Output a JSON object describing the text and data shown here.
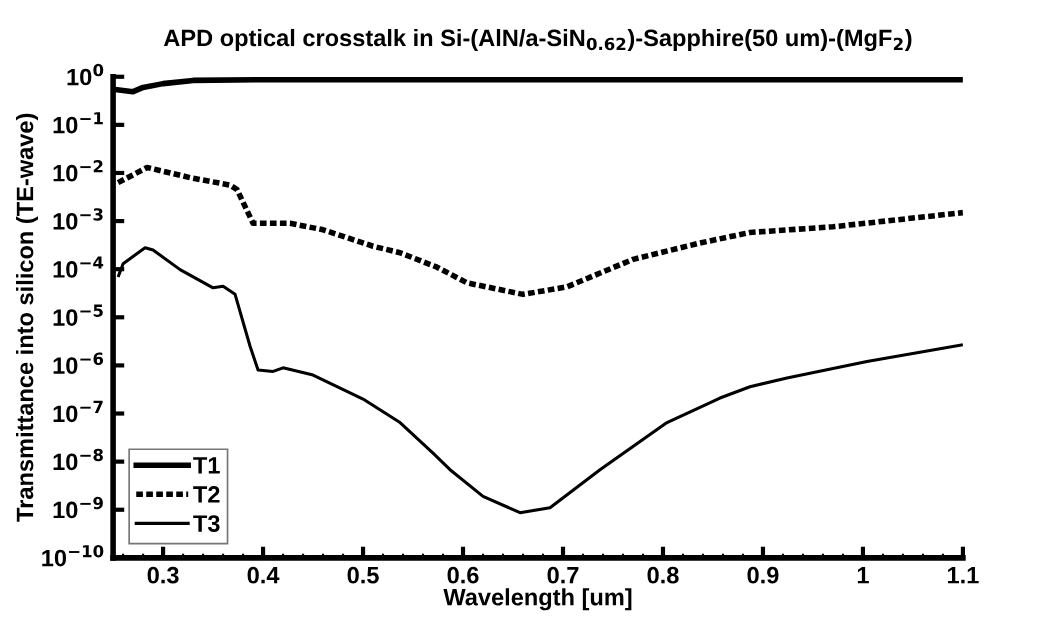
{
  "chart_data": {
    "type": "line",
    "title": "APD optical crosstalk in Si-(AlN/a-SiN$_{0.62}$)-Sapphire(50 um)-(MgF$_{2}$)",
    "xlabel": "Wavelength [um]",
    "ylabel": "Transmittance into silicon (TE-wave)",
    "log": "y",
    "xlim": [
      0.25,
      1.1
    ],
    "ylim": [
      1e-10,
      1
    ],
    "xticks": [
      0.3,
      0.4,
      0.5,
      0.6,
      0.7,
      0.8,
      0.9,
      1,
      1.1
    ],
    "yticks": [
      {
        "value": 1e-10,
        "label": "10$^{−10}$"
      },
      {
        "value": 1e-09,
        "label": "10$^{−9}$"
      },
      {
        "value": 1e-08,
        "label": "10$^{−8}$"
      },
      {
        "value": 1e-07,
        "label": "10$^{−7}$"
      },
      {
        "value": 1e-06,
        "label": "10$^{−6}$"
      },
      {
        "value": 1e-05,
        "label": "10$^{−5}$"
      },
      {
        "value": 0.0001,
        "label": "10$^{−4}$"
      },
      {
        "value": 0.001,
        "label": "10$^{−3}$"
      },
      {
        "value": 0.01,
        "label": "10$^{−2}$"
      },
      {
        "value": 0.1,
        "label": "10$^{−1}$"
      },
      {
        "value": 1,
        "label": "10$^{0}$"
      }
    ],
    "grid": false,
    "legend": "bottom left",
    "marker": "none",
    "series": [
      {
        "name": "T1",
        "color": "#000000",
        "line_style": "solid",
        "x": [
          0.25,
          0.26,
          0.27,
          0.28,
          0.3,
          0.33,
          0.4,
          0.6,
          0.8,
          1.1
        ],
        "values": [
          0.55,
          0.52,
          0.49,
          0.6,
          0.72,
          0.84,
          0.87,
          0.87,
          0.87,
          0.87
        ]
      },
      {
        "name": "T2",
        "color": "#000000",
        "line_style": "dashed",
        "x": [
          0.255,
          0.284,
          0.327,
          0.367,
          0.374,
          0.39,
          0.427,
          0.46,
          0.51,
          0.537,
          0.574,
          0.604,
          0.66,
          0.704,
          0.77,
          0.837,
          0.887,
          0.97,
          1.1
        ],
        "values": [
          0.0063,
          0.013,
          0.008,
          0.0056,
          0.0045,
          0.0009,
          0.0009,
          0.00066,
          0.0003,
          0.00022,
          0.00011,
          5.2e-05,
          3e-05,
          4.3e-05,
          0.00016,
          0.00035,
          0.00058,
          0.00076,
          0.0015
        ]
      },
      {
        "name": "T3",
        "color": "#000000",
        "line_style": "solid",
        "x": [
          0.255,
          0.26,
          0.282,
          0.29,
          0.317,
          0.35,
          0.36,
          0.372,
          0.387,
          0.395,
          0.41,
          0.42,
          0.45,
          0.5,
          0.537,
          0.57,
          0.587,
          0.62,
          0.657,
          0.687,
          0.737,
          0.804,
          0.857,
          0.887,
          0.924,
          1.004,
          1.1
        ],
        "values": [
          6.9e-05,
          0.00013,
          0.00028,
          0.00025,
          9.8e-05,
          4.1e-05,
          4.4e-05,
          3e-05,
          2.5e-06,
          8e-07,
          7.5e-07,
          8.9e-07,
          6.3e-07,
          2e-07,
          6.5e-08,
          1.5e-08,
          6.8e-09,
          1.9e-09,
          8.7e-10,
          1.1e-09,
          6.8e-09,
          6.5e-08,
          2.1e-07,
          3.6e-07,
          5.5e-07,
          1.2e-06,
          2.7e-06
        ]
      }
    ]
  }
}
